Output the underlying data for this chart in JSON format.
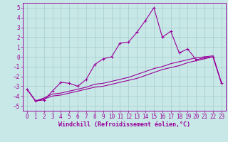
{
  "bg_color": "#c8e8e8",
  "grid_color": "#a8caca",
  "line_color": "#990099",
  "xlabel": "Windchill (Refroidissement éolien,°C)",
  "xlim": [
    -0.5,
    23.5
  ],
  "ylim": [
    -5.5,
    5.5
  ],
  "xticks": [
    0,
    1,
    2,
    3,
    4,
    5,
    6,
    7,
    8,
    9,
    10,
    11,
    12,
    13,
    14,
    15,
    16,
    17,
    18,
    19,
    20,
    21,
    22,
    23
  ],
  "yticks": [
    -5,
    -4,
    -3,
    -2,
    -1,
    0,
    1,
    2,
    3,
    4,
    5
  ],
  "line1_x": [
    0,
    1,
    2,
    3,
    4,
    5,
    6,
    7,
    8,
    9,
    10,
    11,
    12,
    13,
    14,
    15,
    16,
    17,
    18,
    19,
    20,
    21,
    22,
    23
  ],
  "line1_y": [
    -3.3,
    -4.5,
    -4.4,
    -3.5,
    -2.6,
    -2.7,
    -3.0,
    -2.3,
    -0.8,
    -0.2,
    0.0,
    1.4,
    1.5,
    2.5,
    3.7,
    5.0,
    2.0,
    2.6,
    0.4,
    0.8,
    -0.3,
    -0.1,
    0.0,
    -2.7
  ],
  "line2_x": [
    0,
    1,
    2,
    3,
    4,
    5,
    6,
    7,
    8,
    9,
    10,
    11,
    12,
    13,
    14,
    15,
    16,
    17,
    18,
    19,
    20,
    21,
    22,
    23
  ],
  "line2_y": [
    -3.3,
    -4.5,
    -4.2,
    -3.8,
    -3.7,
    -3.5,
    -3.3,
    -3.1,
    -2.8,
    -2.7,
    -2.5,
    -2.3,
    -2.1,
    -1.8,
    -1.5,
    -1.2,
    -1.0,
    -0.7,
    -0.5,
    -0.3,
    -0.1,
    0.0,
    0.1,
    -2.7
  ],
  "line3_x": [
    0,
    1,
    2,
    3,
    4,
    5,
    6,
    7,
    8,
    9,
    10,
    11,
    12,
    13,
    14,
    15,
    16,
    17,
    18,
    19,
    20,
    21,
    22,
    23
  ],
  "line3_y": [
    -3.3,
    -4.5,
    -4.3,
    -4.0,
    -3.9,
    -3.7,
    -3.5,
    -3.3,
    -3.1,
    -3.0,
    -2.8,
    -2.6,
    -2.4,
    -2.2,
    -1.9,
    -1.6,
    -1.3,
    -1.1,
    -0.9,
    -0.6,
    -0.4,
    -0.2,
    0.0,
    -2.7
  ],
  "tick_fontsize": 5.5,
  "xlabel_fontsize": 6.0,
  "figwidth": 3.2,
  "figheight": 2.0,
  "dpi": 100
}
